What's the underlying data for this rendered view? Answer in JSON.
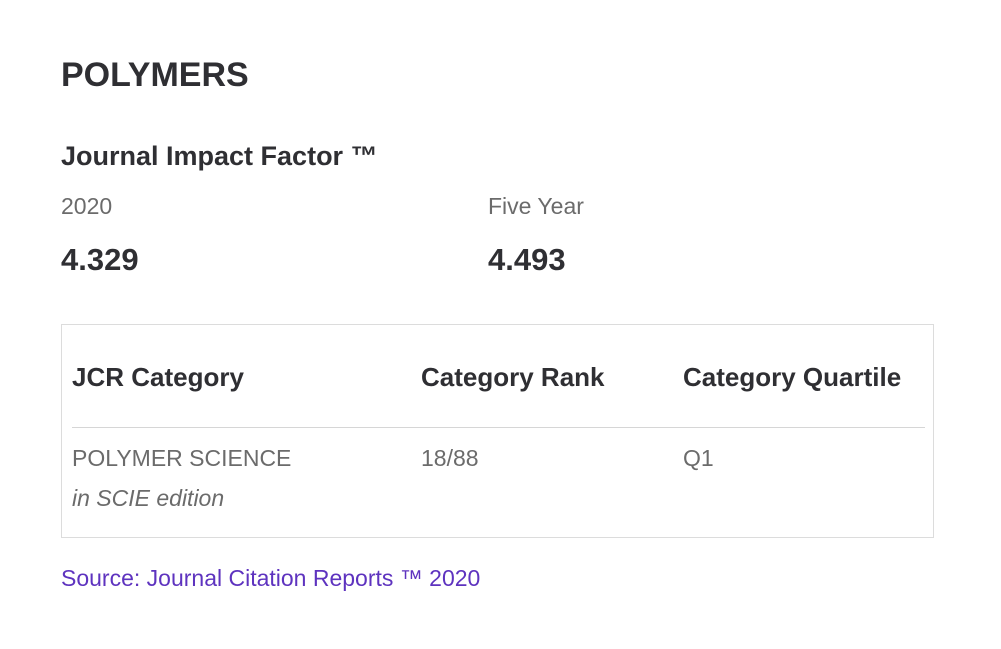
{
  "title": "POLYMERS",
  "section": {
    "title": "Journal Impact Factor ™",
    "metrics": [
      {
        "label": "2020",
        "value": "4.329"
      },
      {
        "label": "Five Year",
        "value": "4.493"
      }
    ]
  },
  "table": {
    "headers": [
      "JCR Category",
      "Category Rank",
      "Category Quartile"
    ],
    "rows": [
      {
        "category": "POLYMER SCIENCE",
        "edition": "in SCIE edition",
        "rank": "18/88",
        "quartile": "Q1"
      }
    ]
  },
  "source": "Source: Journal Citation Reports ™ 2020"
}
